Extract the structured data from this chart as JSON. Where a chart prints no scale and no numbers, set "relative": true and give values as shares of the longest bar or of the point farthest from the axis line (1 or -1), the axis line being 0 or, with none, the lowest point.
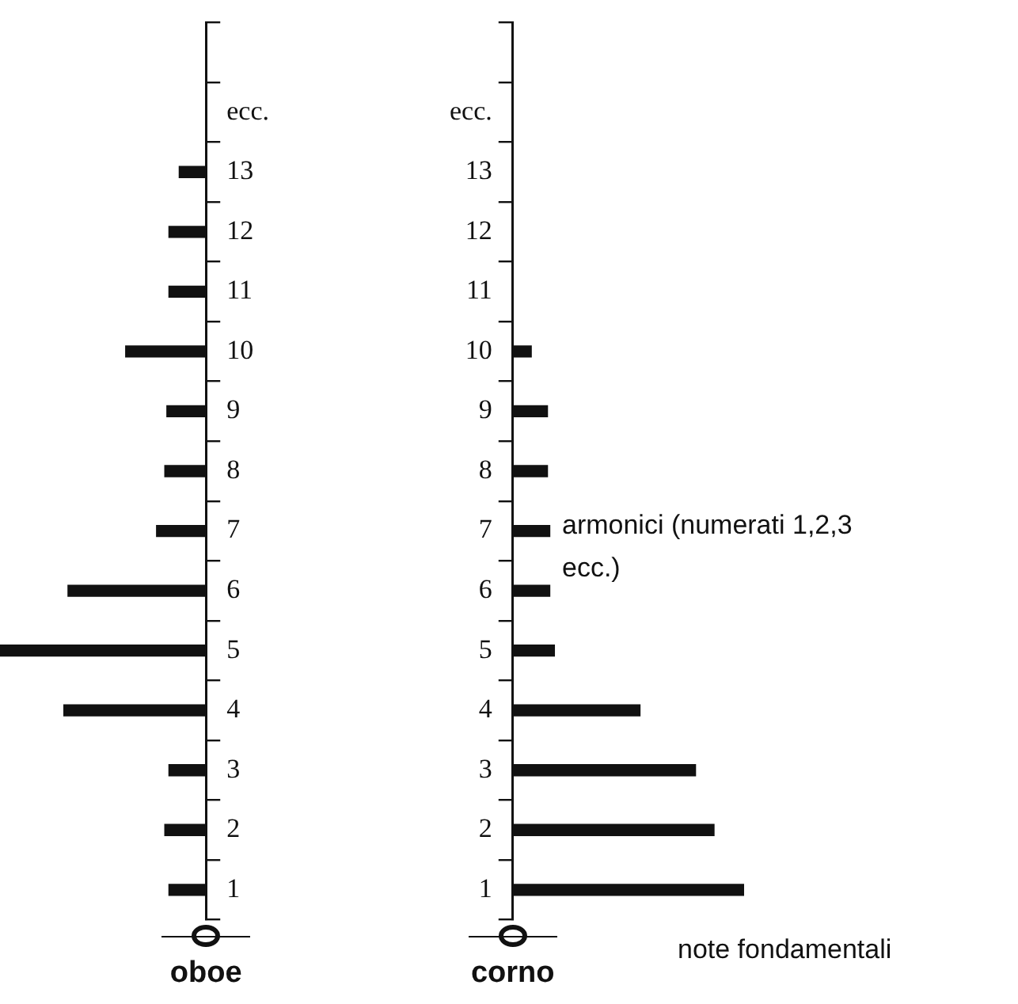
{
  "chart_data": [
    {
      "type": "bar",
      "orientation": "horizontal",
      "relative": true,
      "xlabel": "oboe",
      "color": "#111111",
      "grid": false,
      "legend": false,
      "categories": [
        null,
        "ecc.",
        "13",
        "12",
        "11",
        "10",
        "9",
        "8",
        "7",
        "6",
        "5",
        "4",
        "3",
        "2",
        "1"
      ],
      "values": [
        null,
        null,
        -0.13,
        -0.18,
        -0.18,
        -0.39,
        -0.19,
        -0.2,
        -0.24,
        -0.67,
        -1,
        -0.69,
        -0.18,
        -0.2,
        -0.18
      ]
    },
    {
      "type": "bar",
      "orientation": "horizontal",
      "relative": true,
      "xlabel": "corno",
      "color": "#111111",
      "grid": false,
      "legend": false,
      "categories": [
        null,
        "ecc.",
        "13",
        "12",
        "11",
        "10",
        "9",
        "8",
        "7",
        "6",
        "5",
        "4",
        "3",
        "2",
        "1"
      ],
      "values": [
        null,
        null,
        null,
        null,
        null,
        0.08,
        0.15,
        0.15,
        0.16,
        0.16,
        0.18,
        0.55,
        0.79,
        0.87,
        1
      ],
      "annotations": [
        "armonici (numerati 1,2,3 ecc.)",
        "note fondamentali"
      ]
    }
  ]
}
